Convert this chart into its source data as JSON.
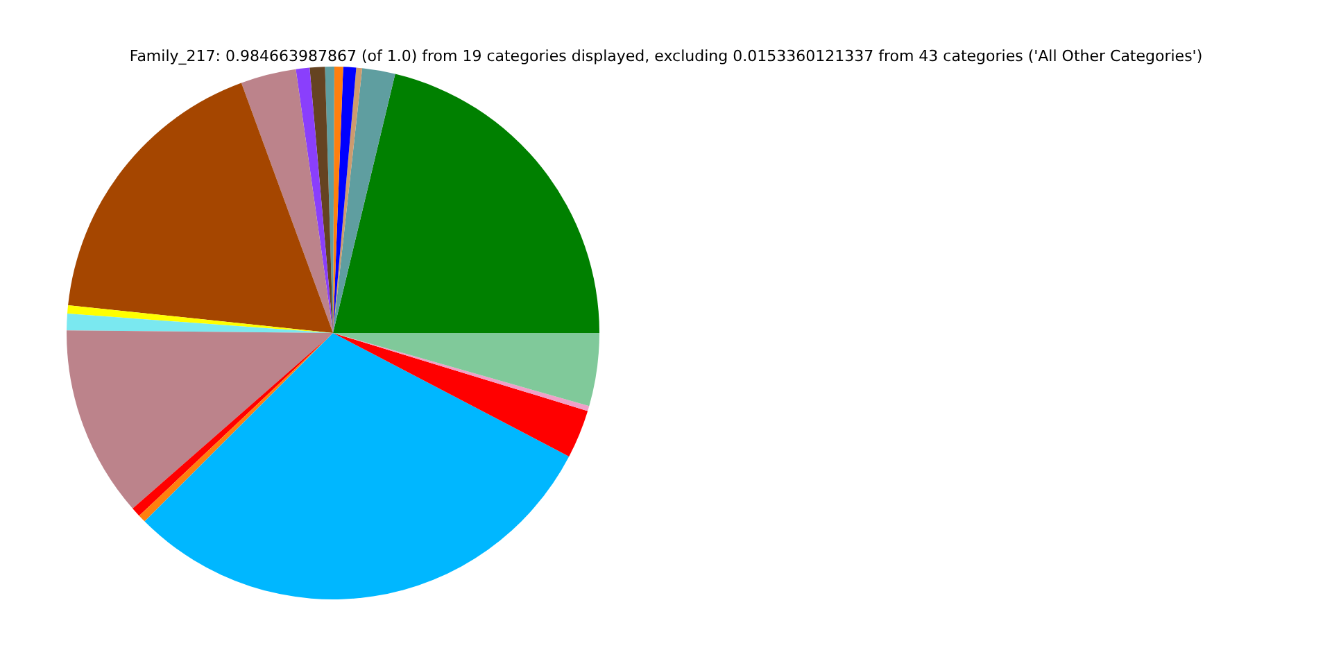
{
  "chart_data": {
    "type": "pie",
    "title": "Family_217: 0.984663987867 (of 1.0) from 19 categories displayed, excluding 0.0153360121337 from 43 categories ('All Other Categories')",
    "categories": [
      null,
      null,
      null,
      null,
      null,
      null,
      null,
      null,
      null,
      null,
      null,
      null,
      null,
      null,
      null,
      null,
      null,
      null,
      null
    ],
    "values": [
      21.25,
      2.0,
      0.36,
      0.78,
      0.53,
      0.56,
      0.92,
      0.83,
      3.36,
      17.75,
      0.5,
      1.0,
      11.61,
      0.58,
      0.47,
      29.83,
      2.94,
      0.31,
      4.42
    ],
    "colors": [
      "#008000",
      "#5f9ea0",
      "#cd9b6e",
      "#0000ff",
      "#ff7f0e",
      "#5f9ea0",
      "#654321",
      "#8a3ffc",
      "#bc838b",
      "#a54600",
      "#ffff00",
      "#7ae8f0",
      "#bc838b",
      "#ff0000",
      "#ff7f0e",
      "#00b7ff",
      "#ff0000",
      "#f0a0c8",
      "#80c99a"
    ],
    "legend": false
  }
}
